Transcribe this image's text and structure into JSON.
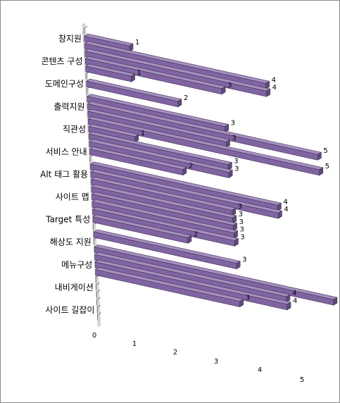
{
  "chart_data": {
    "type": "bar",
    "orientation": "horizontal",
    "style": "3d-perspective",
    "categories": [
      "창지원",
      "콘텐츠 구성",
      "도메인구성",
      "출력지원",
      "직관성",
      "서비스 안내",
      "Alt 태그 활용",
      "사이트 맵",
      "Target 특성",
      "해상도 지원",
      "메뉴구성",
      "내비게이션",
      "사이트 길잡이"
    ],
    "values": [
      [
        0,
        1,
        4
      ],
      [
        4,
        3,
        1
      ],
      [
        0,
        2,
        0
      ],
      [
        3,
        5,
        3
      ],
      [
        5,
        1,
        3
      ],
      [
        3,
        2,
        0
      ],
      [
        4,
        4,
        3
      ],
      [
        3,
        3,
        3
      ],
      [
        3,
        2,
        0
      ],
      [
        3,
        0,
        5
      ],
      [
        4,
        4,
        3
      ],
      [
        0,
        0,
        0
      ],
      [
        0,
        0,
        0
      ]
    ],
    "xlim": [
      0,
      5
    ],
    "x_ticks": [
      "0",
      "1",
      "2",
      "3",
      "4",
      "5"
    ],
    "legend": "none",
    "bar_color": "#8064A2"
  }
}
